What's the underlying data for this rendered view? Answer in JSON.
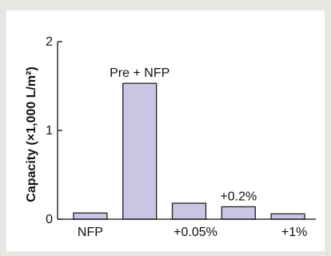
{
  "header": {
    "text": ""
  },
  "chart_data": {
    "type": "bar",
    "categories": [
      "NFP",
      "Pre + NFP",
      "+0.05%",
      "+0.2%",
      "+1%"
    ],
    "values": [
      0.07,
      1.53,
      0.18,
      0.14,
      0.06
    ],
    "title": "",
    "xlabel": "",
    "ylabel": "Capacity (×1,000 L/m²)",
    "ylim": [
      0,
      2
    ],
    "yticks": [
      0,
      1,
      2
    ],
    "bar_color": "#c9c6e3",
    "bar_edge": "#222222",
    "grid": false,
    "label_positions": [
      "below",
      "above",
      "below",
      "above",
      "below"
    ]
  }
}
